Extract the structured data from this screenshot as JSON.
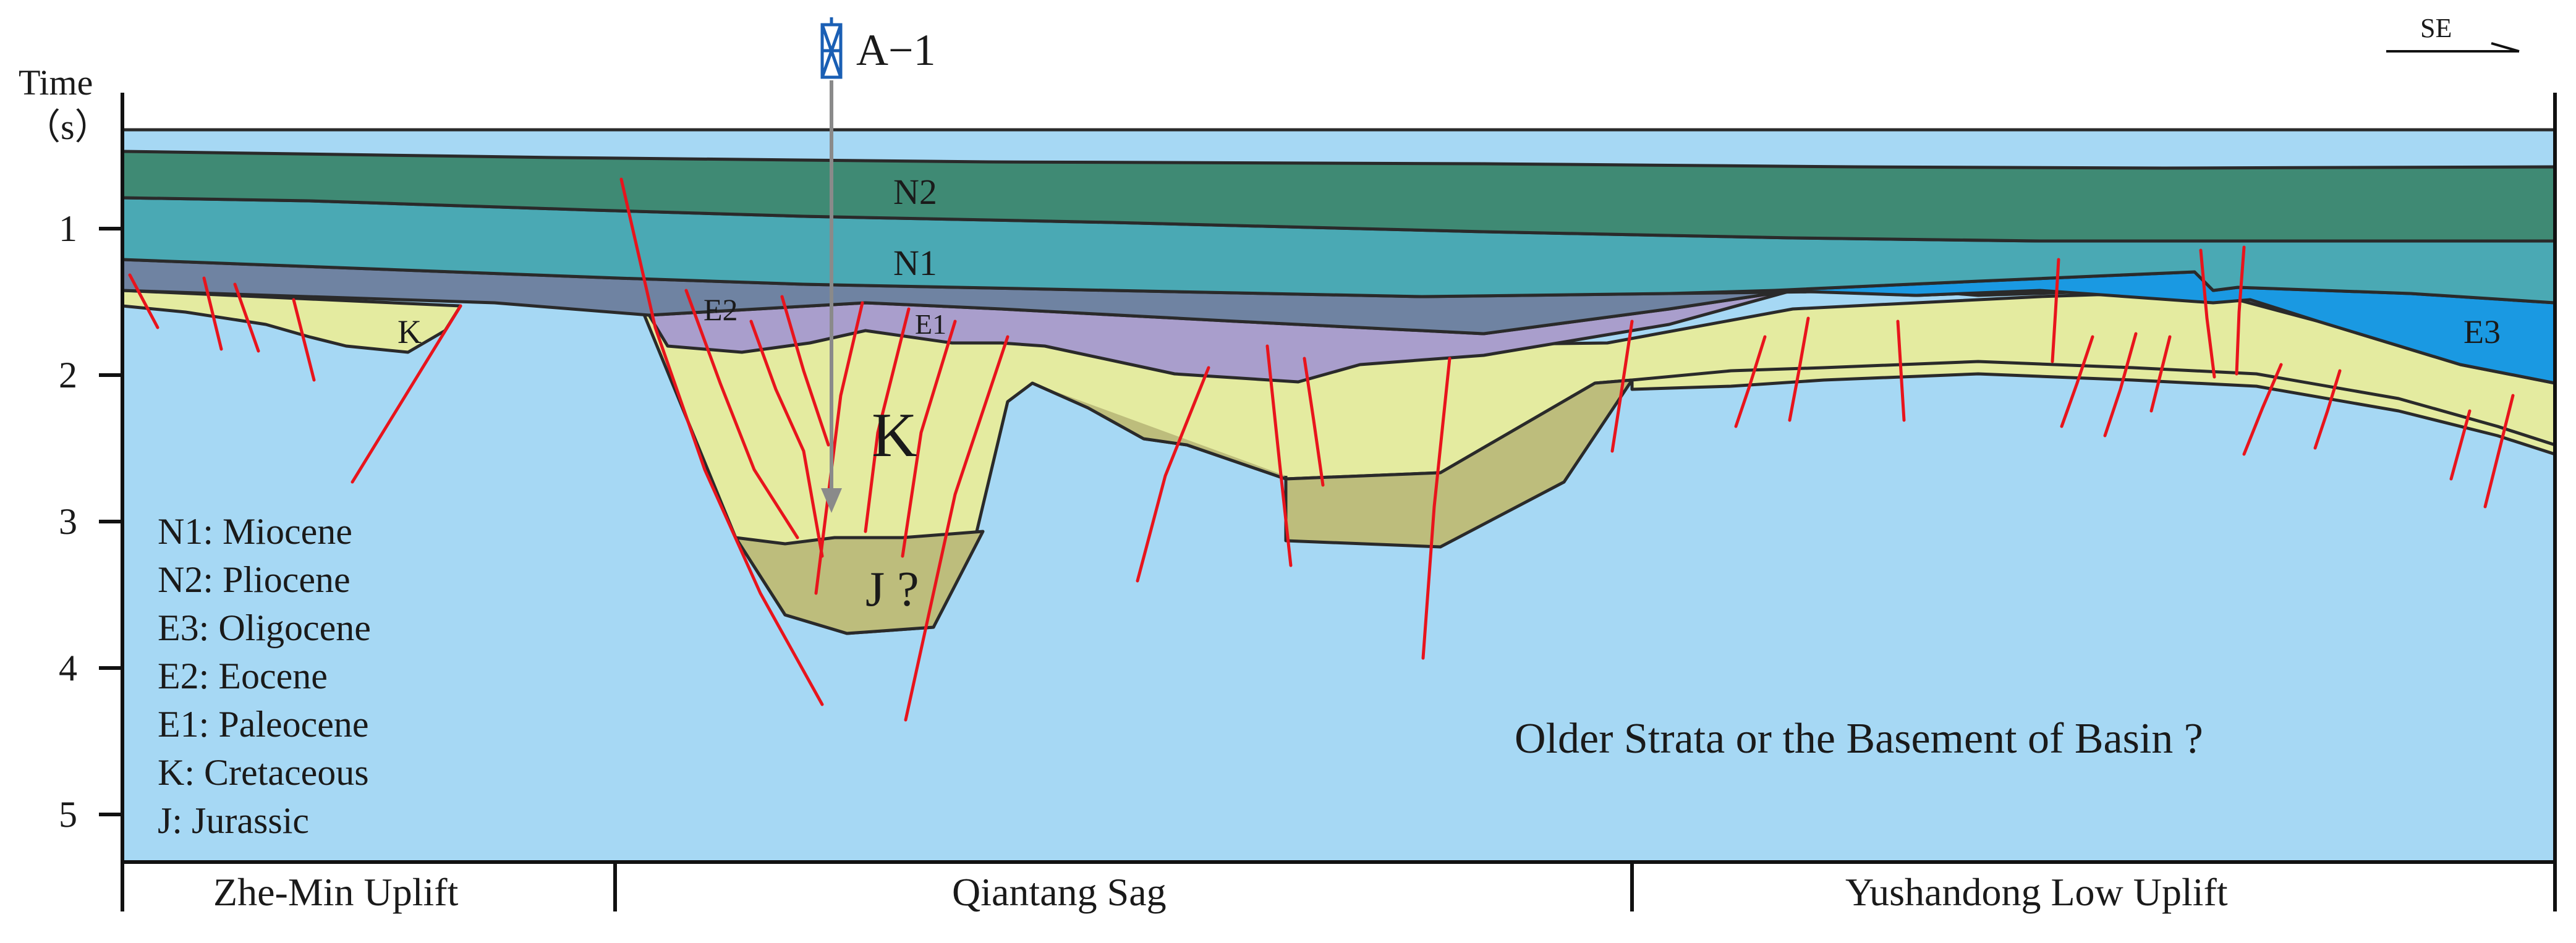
{
  "well": {
    "name": "A−1"
  },
  "direction": {
    "label": "SE"
  },
  "axis": {
    "title_line1": "Time",
    "title_line2": "（s）",
    "ticks": [
      "1",
      "2",
      "3",
      "4",
      "5"
    ]
  },
  "strata_labels": {
    "n2": "N2",
    "n1": "N1",
    "e2": "E2",
    "e1": "E1",
    "e3": "E3",
    "k_small": "K",
    "k_big": "K",
    "j": "J ?"
  },
  "legend": [
    {
      "code": "N1",
      "name": ": Miocene"
    },
    {
      "code": "N2",
      "name": ": Pliocene"
    },
    {
      "code": "E3",
      "name": ": Oligocene"
    },
    {
      "code": "E2",
      "name": ": Eocene"
    },
    {
      "code": "E1",
      "name": ": Paleocene"
    },
    {
      "code": "K",
      "name": ": Cretaceous"
    },
    {
      "code": "J",
      "name": ": Jurassic"
    }
  ],
  "basement_note": "Older Strata or the Basement of Basin ?",
  "zones": [
    {
      "label": "Zhe-Min Uplift"
    },
    {
      "label": "Qiantang  Sag"
    },
    {
      "label": "Yushandong Low Uplift"
    }
  ],
  "colors": {
    "basement": "#a6d8f4",
    "cretaceous": "#e4eba0",
    "jurassic": "#bdbd7c",
    "e1": "#a99ecc",
    "e2": "#6f83a2",
    "e3": "#1a99e2",
    "n1": "#4aa9b4",
    "n2": "#3f8a74",
    "fault": "#e8141c"
  }
}
